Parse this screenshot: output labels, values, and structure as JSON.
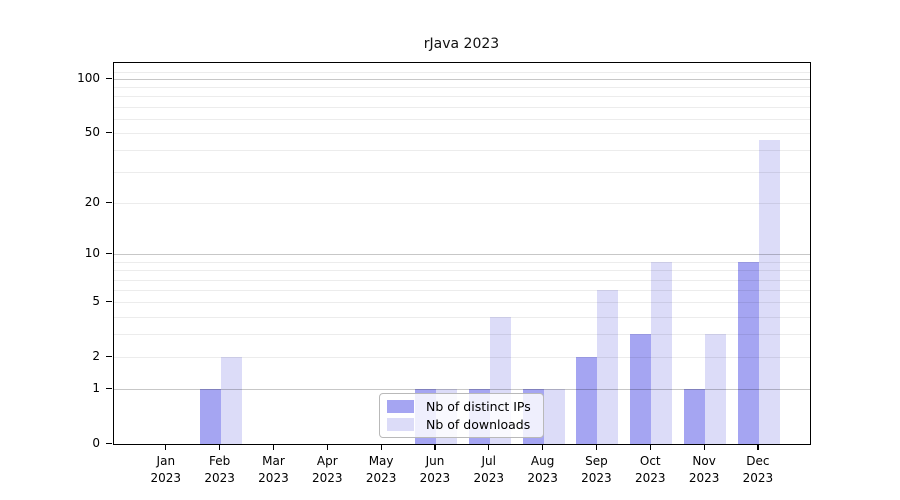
{
  "title": "rJava 2023",
  "chart_data": {
    "type": "bar",
    "scale": "log10(1+v)",
    "title": "rJava 2023",
    "xlabel": "",
    "ylabel": "",
    "categories": [
      "Jan",
      "Feb",
      "Mar",
      "Apr",
      "May",
      "Jun",
      "Jul",
      "Aug",
      "Sep",
      "Oct",
      "Nov",
      "Dec"
    ],
    "year": "2023",
    "series": [
      {
        "name": "Nb of distinct IPs",
        "color": "#a5a5f2",
        "values": [
          0,
          1,
          0,
          0,
          0,
          1,
          1,
          1,
          2,
          3,
          1,
          9
        ]
      },
      {
        "name": "Nb of downloads",
        "color": "#dcdcf8",
        "values": [
          0,
          2,
          0,
          0,
          0,
          1,
          4,
          1,
          6,
          9,
          3,
          46
        ]
      }
    ],
    "y_tick_labels": [
      0,
      1,
      2,
      5,
      10,
      20,
      50,
      100
    ],
    "y_major_gridlines": [
      1,
      10,
      100
    ],
    "y_minor_gridlines": [
      2,
      3,
      4,
      5,
      6,
      7,
      8,
      9,
      20,
      30,
      40,
      50,
      60,
      70,
      80,
      90,
      110
    ],
    "ylim": [
      0,
      123
    ],
    "grid": "on",
    "legend_position": "bottom-center"
  }
}
